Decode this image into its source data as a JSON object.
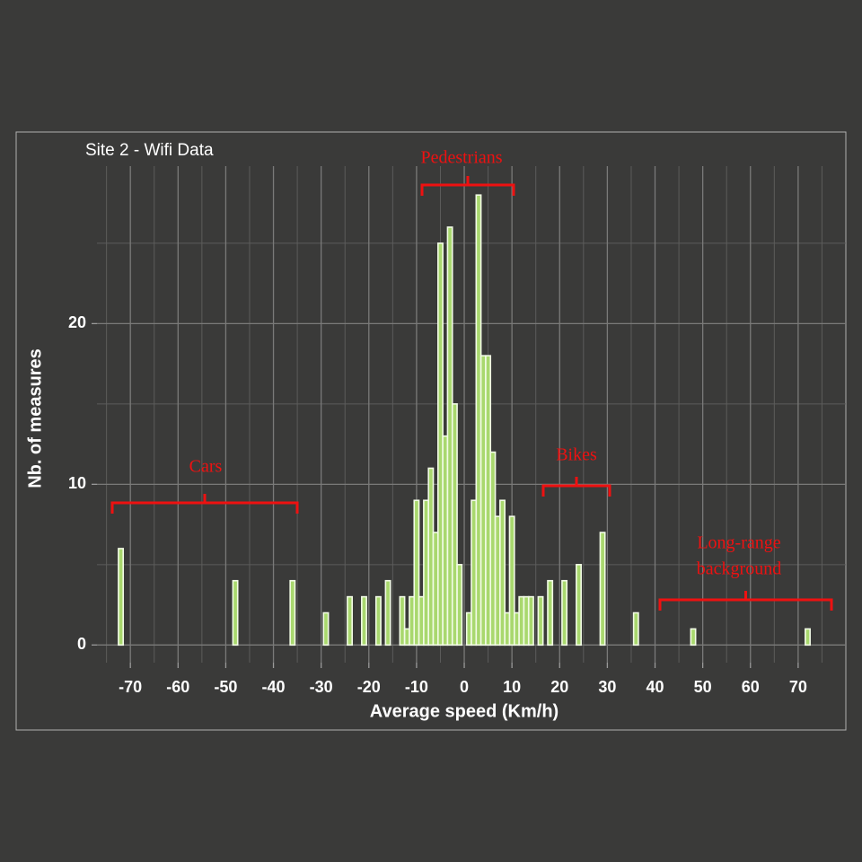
{
  "chart_data": {
    "type": "histogram",
    "title": "Site 2 - Wifi Data",
    "x_label": "Average speed (Km/h)",
    "y_label": "Nb. of measures",
    "bins": [
      -72.5,
      -71.5,
      -70.5,
      -69.5,
      -68.5,
      -67.5,
      -66.5,
      -65.5,
      -64.5,
      -63.5,
      -62.5,
      -61.5,
      -60.5,
      -59.5,
      -58.5,
      -57.5,
      -56.5,
      -55.5,
      -54.5,
      -53.5,
      -52.5,
      -51.5,
      -50.5,
      -49.5,
      -48.5,
      -47.5,
      -46.5,
      -45.5,
      -44.5,
      -43.5,
      -42.5,
      -41.5,
      -40.5,
      -39.5,
      -38.5,
      -37.5,
      -36.5,
      -35.5,
      -34.5,
      -33.5,
      -32.5,
      -31.5,
      -30.5,
      -29.5,
      -28.5,
      -27.5,
      -26.5,
      -25.5,
      -24.5,
      -23.5,
      -22.5,
      -21.5,
      -20.5,
      -19.5,
      -18.5,
      -17.5,
      -16.5,
      -15.5,
      -14.5,
      -13.5,
      -12.5,
      -11.5,
      -10.5,
      -9.5,
      -8.5,
      -7.5,
      -6.5,
      -5.5,
      -4.5,
      -3.5,
      -2.5,
      -1.5,
      -0.5,
      0.5,
      1.5,
      2.5,
      3.5,
      4.5,
      5.5,
      6.5,
      7.5,
      8.5,
      9.5,
      10.5,
      11.5,
      12.5,
      13.5,
      14.5,
      15.5,
      16.5,
      17.5,
      18.5,
      19.5,
      20.5,
      21.5,
      22.5,
      23.5,
      24.5,
      25.5,
      26.5,
      27.5,
      28.5,
      29.5,
      30.5,
      31.5,
      32.5,
      33.5,
      34.5,
      35.5,
      36.5,
      37.5,
      38.5,
      39.5,
      40.5,
      41.5,
      42.5,
      43.5,
      44.5,
      45.5,
      46.5,
      47.5,
      48.5,
      49.5,
      50.5,
      51.5,
      52.5,
      53.5,
      54.5,
      55.5,
      56.5,
      57.5,
      58.5,
      59.5,
      60.5,
      61.5,
      62.5,
      63.5,
      64.5,
      65.5,
      66.5,
      67.5,
      68.5,
      69.5,
      70.5,
      71.5,
      72.5
    ],
    "values": [
      6,
      0,
      0,
      0,
      0,
      0,
      0,
      0,
      0,
      0,
      0,
      0,
      0,
      0,
      0,
      0,
      0,
      0,
      0,
      0,
      0,
      0,
      0,
      0,
      4,
      0,
      0,
      0,
      0,
      0,
      0,
      0,
      0,
      0,
      0,
      0,
      4,
      0,
      0,
      0,
      0,
      0,
      0,
      2,
      0,
      0,
      0,
      0,
      3,
      0,
      0,
      3,
      0,
      0,
      3,
      0,
      4,
      0,
      0,
      3,
      1,
      3,
      9,
      3,
      9,
      11,
      7,
      25,
      13,
      26,
      15,
      5,
      0,
      2,
      9,
      28,
      18,
      18,
      12,
      8,
      9,
      2,
      8,
      2,
      3,
      3,
      3,
      0,
      3,
      0,
      4,
      0,
      0,
      4,
      0,
      0,
      5,
      0,
      0,
      0,
      0,
      7,
      0,
      0,
      0,
      0,
      0,
      0,
      2,
      0,
      0,
      0,
      0,
      0,
      0,
      0,
      0,
      0,
      0,
      0,
      1,
      0,
      0,
      0,
      0,
      0,
      0,
      0,
      0,
      0,
      0,
      0,
      0,
      0,
      0,
      0,
      0,
      0,
      0,
      0,
      0,
      0,
      0,
      0,
      1
    ],
    "color": "#a9d86e",
    "edge_color": "#f2fbe6",
    "xlim": [
      -77,
      80
    ],
    "xticks": [
      -70,
      -60,
      -50,
      -40,
      -30,
      -20,
      -10,
      0,
      10,
      20,
      30,
      40,
      50,
      60,
      70
    ],
    "x_minor_ticks": [
      -75,
      -65,
      -55,
      -45,
      -35,
      -25,
      -15,
      -5,
      5,
      15,
      25,
      35,
      45,
      55,
      65,
      75
    ],
    "ylim": [
      -1.1,
      29.8
    ],
    "yticks": [
      0,
      10,
      20
    ],
    "y_minor_ticks": [
      5,
      15,
      25
    ],
    "grid": true,
    "annotations": [
      {
        "lines": [
          "Cars"
        ]
      },
      {
        "lines": [
          "Pedestrians"
        ]
      },
      {
        "lines": [
          "Bikes"
        ]
      },
      {
        "lines": [
          "Long-range",
          "background"
        ]
      }
    ]
  }
}
